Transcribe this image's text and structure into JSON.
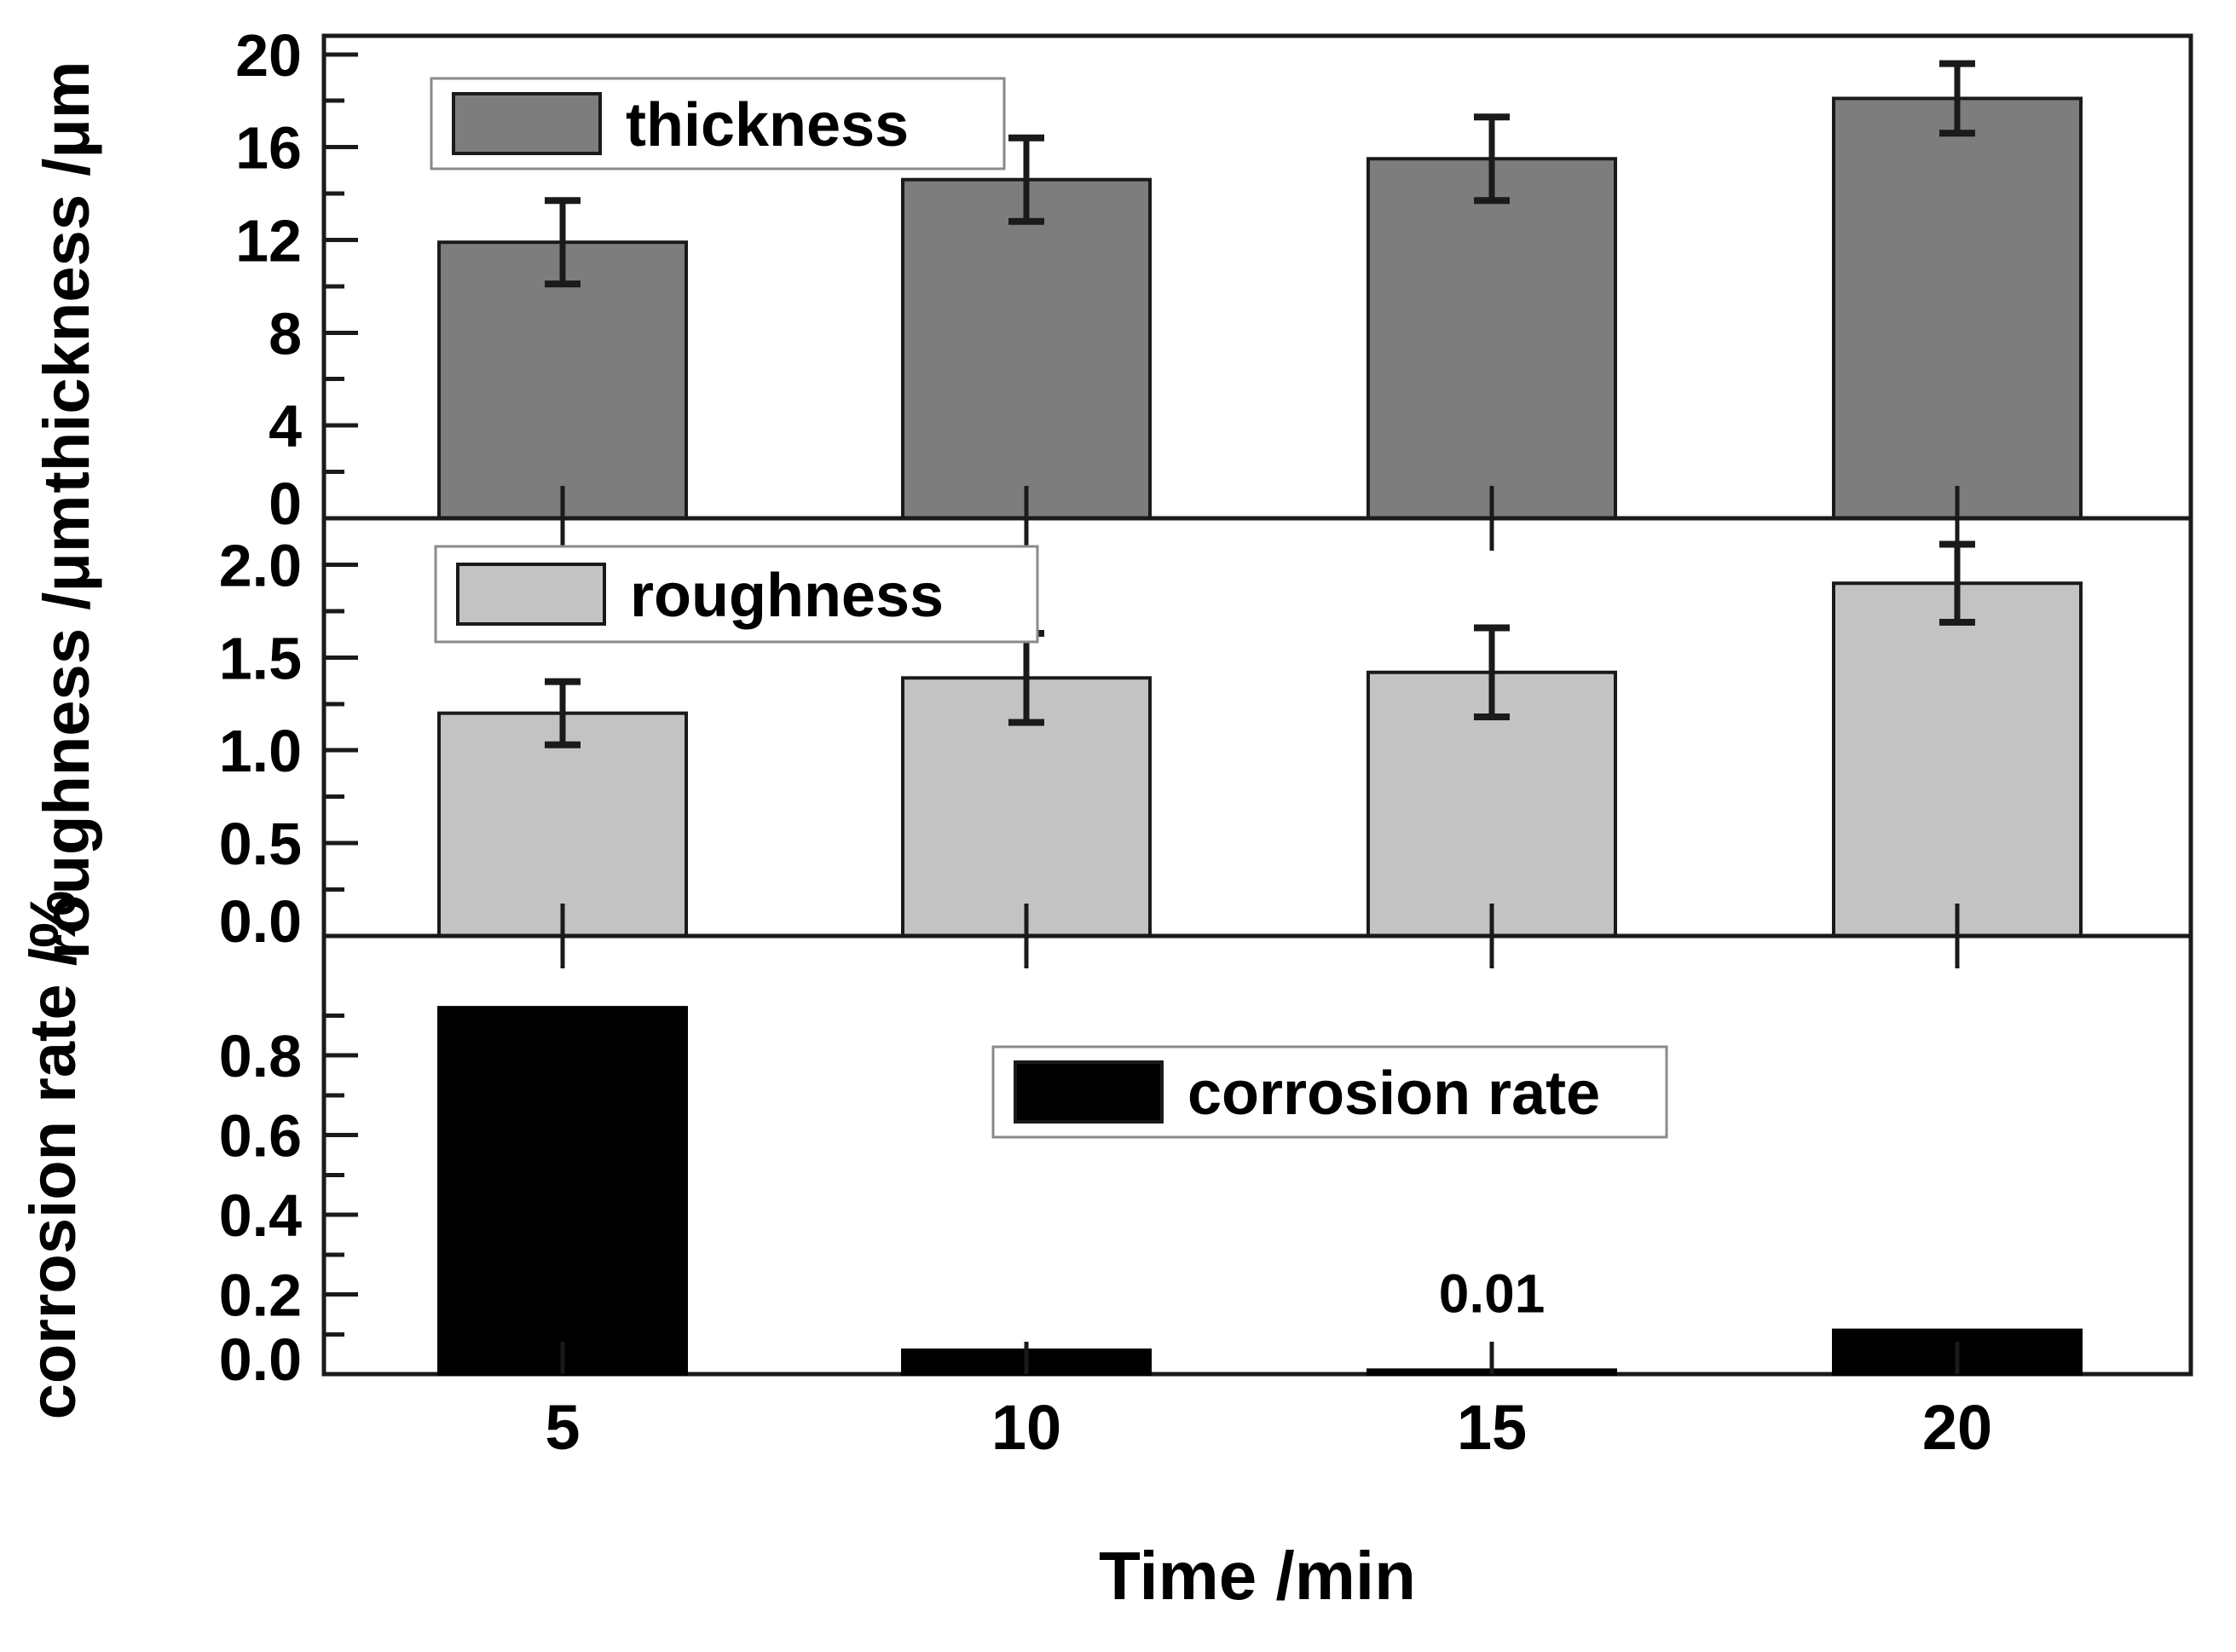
{
  "figure": {
    "background": "#ffffff",
    "frame_color": "#1a1a1a",
    "legend_border_color": "#8a8a8a",
    "legend_fill": "#ffffff"
  },
  "chart_data": {
    "type": "bar",
    "title": "",
    "grid": false,
    "x": {
      "label": "Time /min",
      "categories": [
        "5",
        "10",
        "15",
        "20"
      ],
      "values": [
        5,
        10,
        15,
        20
      ]
    },
    "panels": [
      {
        "name": "thickness",
        "ylabel": "thickness /μm",
        "legend": {
          "label": "thickness",
          "position": "top-left"
        },
        "bar_fill": "#7d7d7d",
        "bar_stroke": "#1a1a1a",
        "ylim": [
          0,
          20.8
        ],
        "yticks": {
          "values": [
            0,
            4,
            8,
            12,
            16,
            20
          ],
          "labels": [
            "0",
            "4",
            "8",
            "12",
            "16",
            "20"
          ],
          "minor_step": 2
        },
        "values": [
          11.9,
          14.6,
          15.5,
          18.1
        ],
        "errors": [
          1.8,
          1.8,
          1.8,
          1.5
        ]
      },
      {
        "name": "roughness",
        "ylabel": "roughness /μm",
        "legend": {
          "label": "roughness",
          "position": "top-left"
        },
        "bar_fill": "#c3c3c3",
        "bar_stroke": "#1a1a1a",
        "ylim": [
          0,
          2.25
        ],
        "yticks": {
          "values": [
            0,
            0.5,
            1.0,
            1.5,
            2.0
          ],
          "labels": [
            "0.0",
            "0.5",
            "1.0",
            "1.5",
            "2.0"
          ],
          "minor_step": 0.25
        },
        "values": [
          1.2,
          1.39,
          1.42,
          1.9
        ],
        "errors": [
          0.17,
          0.24,
          0.24,
          0.21
        ]
      },
      {
        "name": "corrosion-rate",
        "ylabel": "corrosion rate /%",
        "legend": {
          "label": "corrosion rate",
          "position": "top-center"
        },
        "bar_fill": "#000000",
        "bar_stroke": "#000000",
        "ylim": [
          0,
          1.1
        ],
        "yticks": {
          "values": [
            0,
            0.2,
            0.4,
            0.6,
            0.8
          ],
          "labels": [
            "0.0",
            "0.2",
            "0.4",
            "0.6",
            "0.8"
          ],
          "minor_step": 0.1
        },
        "values": [
          0.92,
          0.06,
          0.01,
          0.11
        ],
        "errors": null,
        "annotations": [
          {
            "text": "0.01",
            "category_index": 2,
            "value": 0.155
          }
        ]
      }
    ]
  }
}
